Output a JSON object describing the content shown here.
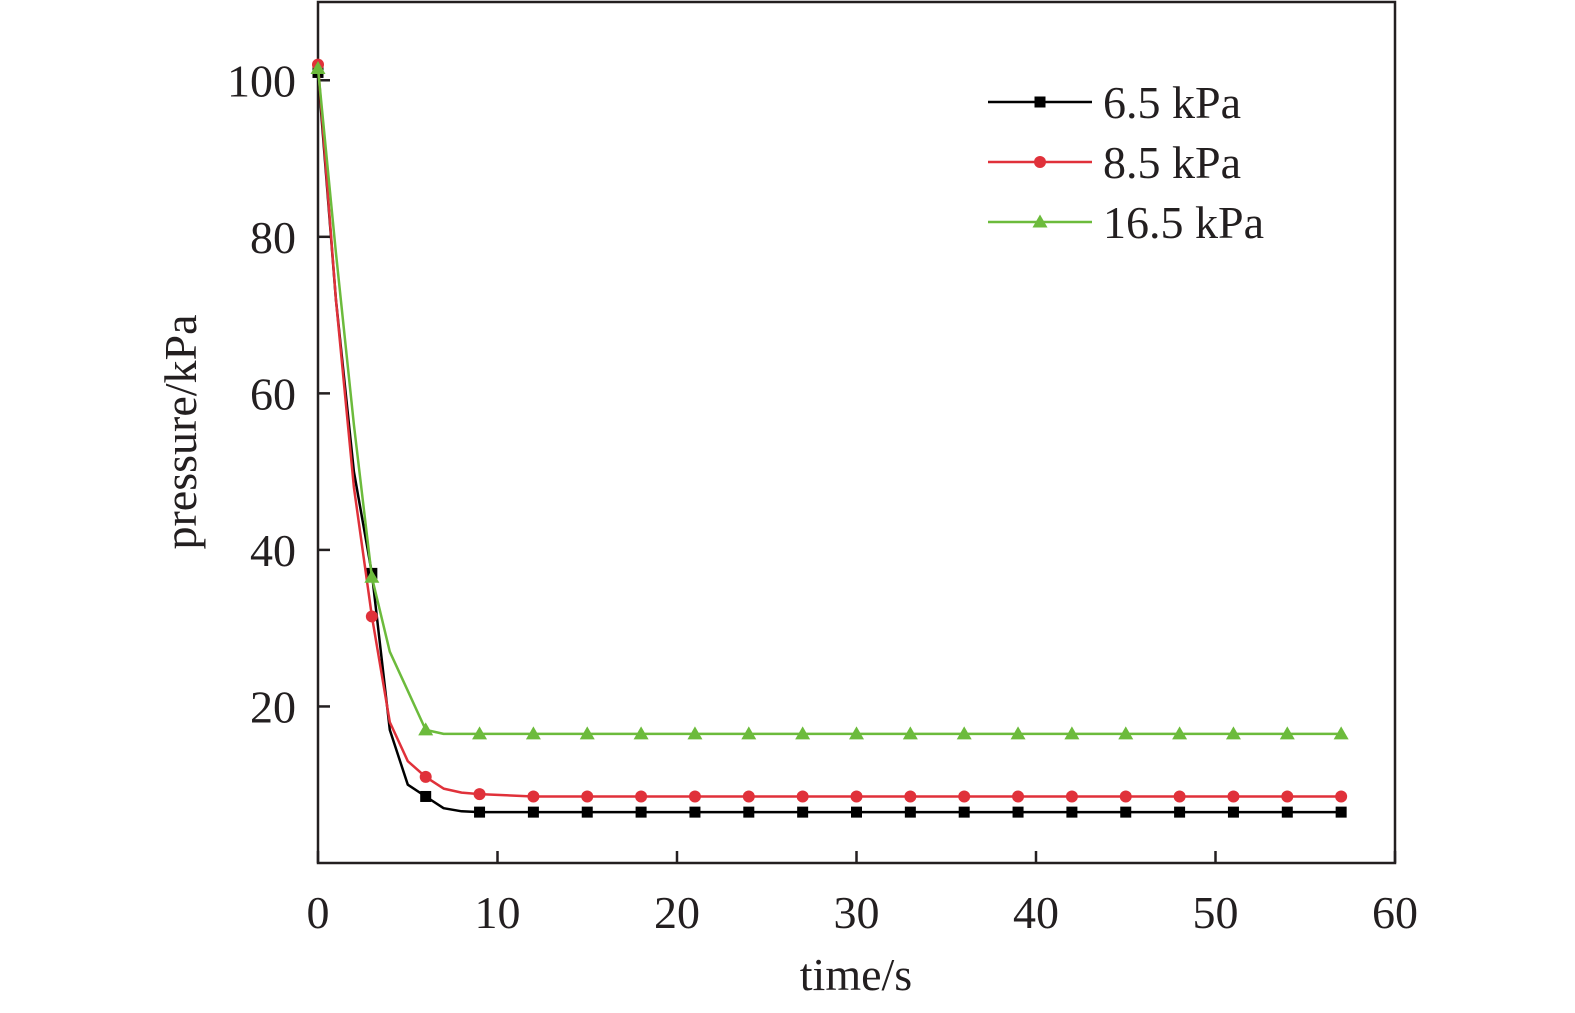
{
  "chart_data": {
    "type": "line",
    "title": "",
    "xlabel": "time/s",
    "ylabel": "pressure/kPa",
    "xlim": [
      0,
      60
    ],
    "ylim": [
      0,
      110
    ],
    "xticks": [
      0,
      10,
      20,
      30,
      40,
      50,
      60
    ],
    "yticks": [
      20,
      40,
      60,
      80,
      100
    ],
    "grid": false,
    "legend": "top-right",
    "series": [
      {
        "name": "6.5 kPa",
        "color": "#000000",
        "marker": "square",
        "x": [
          0,
          3,
          6,
          9,
          12,
          15,
          18,
          21,
          24,
          27,
          30,
          33,
          36,
          39,
          42,
          45,
          48,
          51,
          54,
          57
        ],
        "y": [
          101,
          37,
          8.5,
          6.5,
          6.5,
          6.5,
          6.5,
          6.5,
          6.5,
          6.5,
          6.5,
          6.5,
          6.5,
          6.5,
          6.5,
          6.5,
          6.5,
          6.5,
          6.5,
          6.5
        ],
        "curve_x": [
          0,
          1,
          2,
          3,
          4,
          5,
          6,
          7,
          8,
          9,
          57
        ],
        "curve_y": [
          101,
          72,
          50,
          37,
          17,
          10,
          8.5,
          7.0,
          6.6,
          6.5,
          6.5
        ]
      },
      {
        "name": "8.5 kPa",
        "color": "#e0313a",
        "marker": "circle",
        "x": [
          0,
          3,
          6,
          9,
          12,
          15,
          18,
          21,
          24,
          27,
          30,
          33,
          36,
          39,
          42,
          45,
          48,
          51,
          54,
          57
        ],
        "y": [
          102,
          31.5,
          11,
          8.8,
          8.5,
          8.5,
          8.5,
          8.5,
          8.5,
          8.5,
          8.5,
          8.5,
          8.5,
          8.5,
          8.5,
          8.5,
          8.5,
          8.5,
          8.5,
          8.5
        ],
        "curve_x": [
          0,
          1,
          2,
          3,
          4,
          5,
          6,
          7,
          8,
          9,
          12,
          57
        ],
        "curve_y": [
          102,
          72,
          48,
          31.5,
          18,
          13,
          11,
          9.5,
          9,
          8.8,
          8.5,
          8.5
        ]
      },
      {
        "name": "16.5 kPa",
        "color": "#6cbb3c",
        "marker": "triangle",
        "x": [
          0,
          3,
          6,
          9,
          12,
          15,
          18,
          21,
          24,
          27,
          30,
          33,
          36,
          39,
          42,
          45,
          48,
          51,
          54,
          57
        ],
        "y": [
          101.5,
          36.5,
          17,
          16.5,
          16.5,
          16.5,
          16.5,
          16.5,
          16.5,
          16.5,
          16.5,
          16.5,
          16.5,
          16.5,
          16.5,
          16.5,
          16.5,
          16.5,
          16.5,
          16.5
        ],
        "curve_x": [
          0,
          1,
          2,
          3,
          4,
          5,
          6,
          7,
          9,
          57
        ],
        "curve_y": [
          101.5,
          78,
          56,
          36.5,
          27,
          22,
          17,
          16.5,
          16.5,
          16.5
        ]
      }
    ]
  }
}
